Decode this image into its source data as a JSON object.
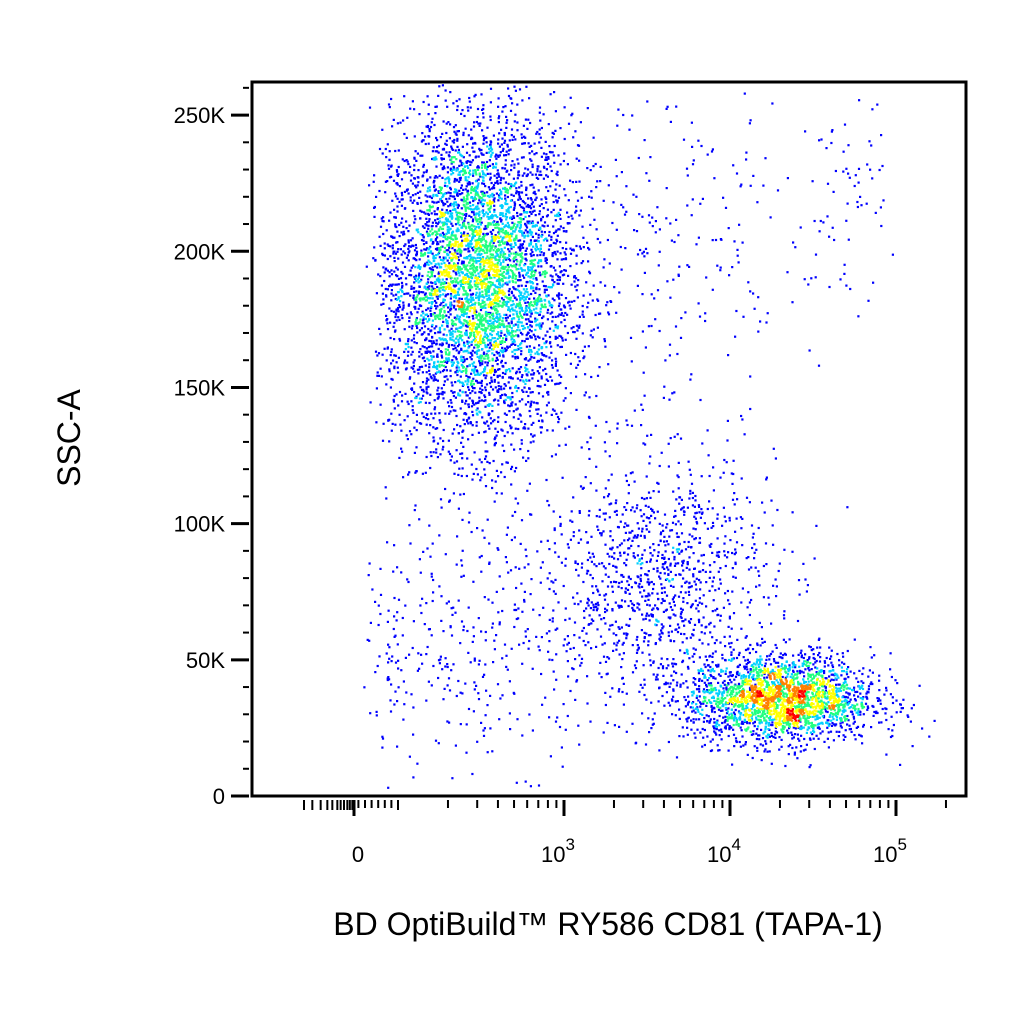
{
  "chart_data": {
    "type": "scatter",
    "title": "",
    "xlabel": "BD OptiBuild™ RY586 CD81 (TAPA-1)",
    "ylabel": "SSC-A",
    "x_scale": "biexponential",
    "x_range": [
      -300,
      200000
    ],
    "ylim": [
      0,
      262144
    ],
    "grid": false,
    "legend": "none",
    "density_colors": [
      "#0000ff",
      "#00d0ff",
      "#20ff80",
      "#ffff00",
      "#ff8000",
      "#ff0000"
    ],
    "x_ticks": [
      {
        "value": 0,
        "label": "0",
        "exp": ""
      },
      {
        "value": 1000,
        "label": "10",
        "exp": "3"
      },
      {
        "value": 10000,
        "label": "10",
        "exp": "4"
      },
      {
        "value": 100000,
        "label": "10",
        "exp": "5"
      }
    ],
    "y_ticks": [
      {
        "value": 0,
        "label": "0"
      },
      {
        "value": 50000,
        "label": "50K"
      },
      {
        "value": 100000,
        "label": "100K"
      },
      {
        "value": 150000,
        "label": "150K"
      },
      {
        "value": 200000,
        "label": "200K"
      },
      {
        "value": 250000,
        "label": "250K"
      }
    ],
    "populations": [
      {
        "center_x": 300,
        "center_y": 190000,
        "spread_log_x": 0.28,
        "spread_y": 30000,
        "count": 5200
      },
      {
        "center_x": 3500,
        "center_y": 80000,
        "spread_log_x": 0.35,
        "spread_y": 22000,
        "count": 1100
      },
      {
        "center_x": 20000,
        "center_y": 36000,
        "spread_log_x": 0.28,
        "spread_y": 8000,
        "count": 2400
      },
      {
        "center_x": 50000,
        "center_y": 220000,
        "spread_log_x": 0.12,
        "spread_y": 18000,
        "count": 60
      },
      {
        "center_x": 300,
        "center_y": 55000,
        "spread_log_x": 0.45,
        "spread_y": 22000,
        "count": 350
      },
      {
        "center_x": 3000,
        "center_y": 200000,
        "spread_log_x": 0.5,
        "spread_y": 35000,
        "count": 300
      }
    ]
  }
}
